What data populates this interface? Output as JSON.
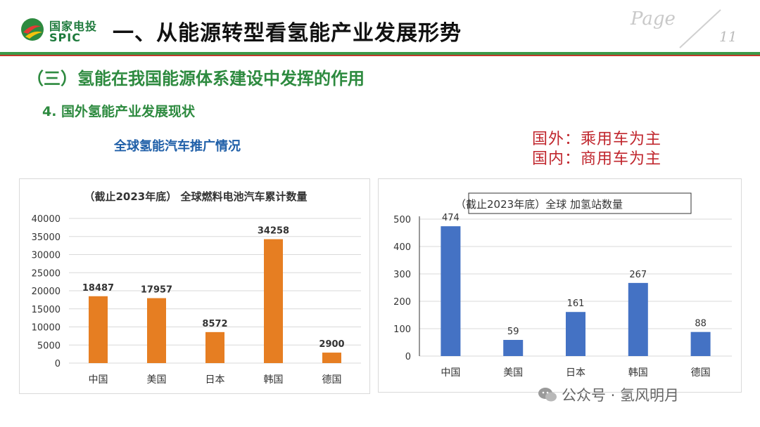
{
  "header": {
    "logo_cn": "国家电投",
    "logo_en": "SPIC",
    "title": "一、从能源转型看氢能产业发展形势",
    "page_label": "Page",
    "page_number": "11",
    "colors": {
      "green": "#3c9a48",
      "red": "#c0392b"
    }
  },
  "content": {
    "section_title": "（三）氢能在我国能源体系建设中发挥的作用",
    "subsection_title": "4. 国外氢能产业发展现状",
    "promo_title": "全球氢能汽车推广情况",
    "note_lines": [
      "国外：乘用车为主",
      "国内：商用车为主"
    ]
  },
  "watermark": "公众号 · 氢风明月",
  "chart_data": [
    {
      "type": "bar",
      "title": "（截止2023年底） 全球燃料电池汽车累计数量",
      "categories": [
        "中国",
        "美国",
        "日本",
        "韩国",
        "德国"
      ],
      "values": [
        18487,
        17957,
        8572,
        34258,
        2900
      ],
      "value_labels": [
        "18487",
        "17957",
        "8572",
        "34258",
        "2900"
      ],
      "y_ticks": [
        "0",
        "5000",
        "10000",
        "15000",
        "20000",
        "25000",
        "30000",
        "35000",
        "40000"
      ],
      "ylim": [
        0,
        40000
      ],
      "grid": true,
      "bar_color": "#e67e22",
      "xlabel": "",
      "ylabel": ""
    },
    {
      "type": "bar",
      "title": "（截止2023年底）全球 加氢站数量",
      "categories": [
        "中国",
        "美国",
        "日本",
        "韩国",
        "德国"
      ],
      "values": [
        474,
        59,
        161,
        267,
        88
      ],
      "value_labels": [
        "474",
        "59",
        "161",
        "267",
        "88"
      ],
      "y_ticks": [
        "0",
        "100",
        "200",
        "300",
        "400",
        "500"
      ],
      "ylim": [
        0,
        500
      ],
      "grid": true,
      "bar_color": "#4472c4",
      "xlabel": "",
      "ylabel": ""
    }
  ]
}
